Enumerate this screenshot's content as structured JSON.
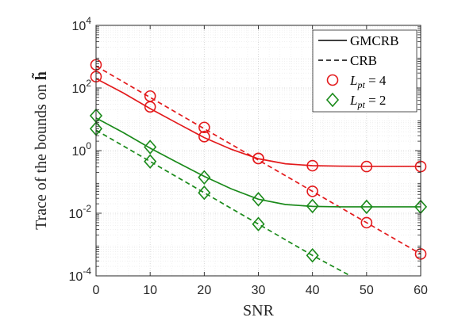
{
  "chart_data": {
    "type": "line",
    "xlabel": "SNR",
    "ylabel": "Trace of the bounds on h̃",
    "ylabel_prefix": "Trace of the bounds on ",
    "ylabel_symbol": "h̃",
    "x_scale": "linear",
    "y_scale": "log",
    "xlim": [
      0,
      60
    ],
    "ylim": [
      0.0001,
      10000
    ],
    "x_ticks": [
      0,
      10,
      20,
      30,
      40,
      50,
      60
    ],
    "x_tick_labels": [
      "0",
      "10",
      "20",
      "30",
      "40",
      "50",
      "60"
    ],
    "y_ticks": [
      0.0001,
      0.01,
      1,
      100,
      10000
    ],
    "y_tick_labels": [
      {
        "base": "10",
        "exp": "-4"
      },
      {
        "base": "10",
        "exp": "-2"
      },
      {
        "base": "10",
        "exp": "0"
      },
      {
        "base": "10",
        "exp": "2"
      },
      {
        "base": "10",
        "exp": "4"
      }
    ],
    "grid": true,
    "minor_grid": true,
    "legend_position": "top-right",
    "legend": [
      {
        "label": "GMCRB",
        "style": "solid-line",
        "color": "#000000"
      },
      {
        "label": "CRB",
        "style": "dashed-line",
        "color": "#000000"
      },
      {
        "label_main": "L",
        "label_sub": "pt",
        "label_rest": " = 4",
        "style": "circle-marker",
        "color": "#e31a1c"
      },
      {
        "label_main": "L",
        "label_sub": "pt",
        "label_rest": " = 2",
        "style": "diamond-marker",
        "color": "#1a8a1a"
      }
    ],
    "series": [
      {
        "id": "gmcrb-lpt4",
        "bound": "GMCRB",
        "lpt": 4,
        "color": "#e31a1c",
        "dash": "solid",
        "line_x": [
          0,
          5,
          10,
          15,
          20,
          25,
          30,
          35,
          40,
          45,
          50,
          55,
          60
        ],
        "line_y": [
          200,
          70,
          22,
          7.5,
          2.6,
          1.1,
          0.55,
          0.38,
          0.33,
          0.32,
          0.315,
          0.315,
          0.315
        ],
        "marker": "circle",
        "marker_x": [
          0,
          10,
          20,
          30,
          40,
          50,
          60
        ],
        "marker_y": [
          230,
          25,
          2.8,
          0.56,
          0.33,
          0.31,
          0.31
        ]
      },
      {
        "id": "crb-lpt4",
        "bound": "CRB",
        "lpt": 4,
        "color": "#e31a1c",
        "dash": "dashed",
        "line_x": [
          0,
          10,
          20,
          30,
          40,
          50,
          60
        ],
        "line_y": [
          500,
          50,
          5,
          0.5,
          0.05,
          0.005,
          0.0005
        ],
        "marker": "circle",
        "marker_x": [
          0,
          10,
          20,
          30,
          40,
          50,
          60
        ],
        "marker_y": [
          550,
          55,
          5.5,
          0.56,
          0.05,
          0.005,
          0.0005
        ]
      },
      {
        "id": "gmcrb-lpt2",
        "bound": "GMCRB",
        "lpt": 2,
        "color": "#1a8a1a",
        "dash": "solid",
        "line_x": [
          0,
          5,
          10,
          15,
          20,
          25,
          30,
          35,
          40,
          45,
          50,
          55,
          60
        ],
        "line_y": [
          11,
          3.8,
          1.2,
          0.42,
          0.15,
          0.06,
          0.028,
          0.019,
          0.0165,
          0.016,
          0.016,
          0.016,
          0.016
        ],
        "marker": "diamond",
        "marker_x": [
          0,
          10,
          20,
          30,
          40,
          50,
          60
        ],
        "marker_y": [
          13,
          1.3,
          0.14,
          0.028,
          0.017,
          0.016,
          0.016
        ]
      },
      {
        "id": "crb-lpt2",
        "bound": "CRB",
        "lpt": 2,
        "color": "#1a8a1a",
        "dash": "dashed",
        "line_x": [
          0,
          10,
          20,
          30,
          40,
          47
        ],
        "line_y": [
          4.5,
          0.45,
          0.045,
          0.0045,
          0.00045,
          0.0001
        ],
        "marker": "diamond",
        "marker_x": [
          0,
          10,
          20,
          30,
          40
        ],
        "marker_y": [
          5,
          0.45,
          0.045,
          0.0045,
          0.00045
        ]
      }
    ]
  }
}
